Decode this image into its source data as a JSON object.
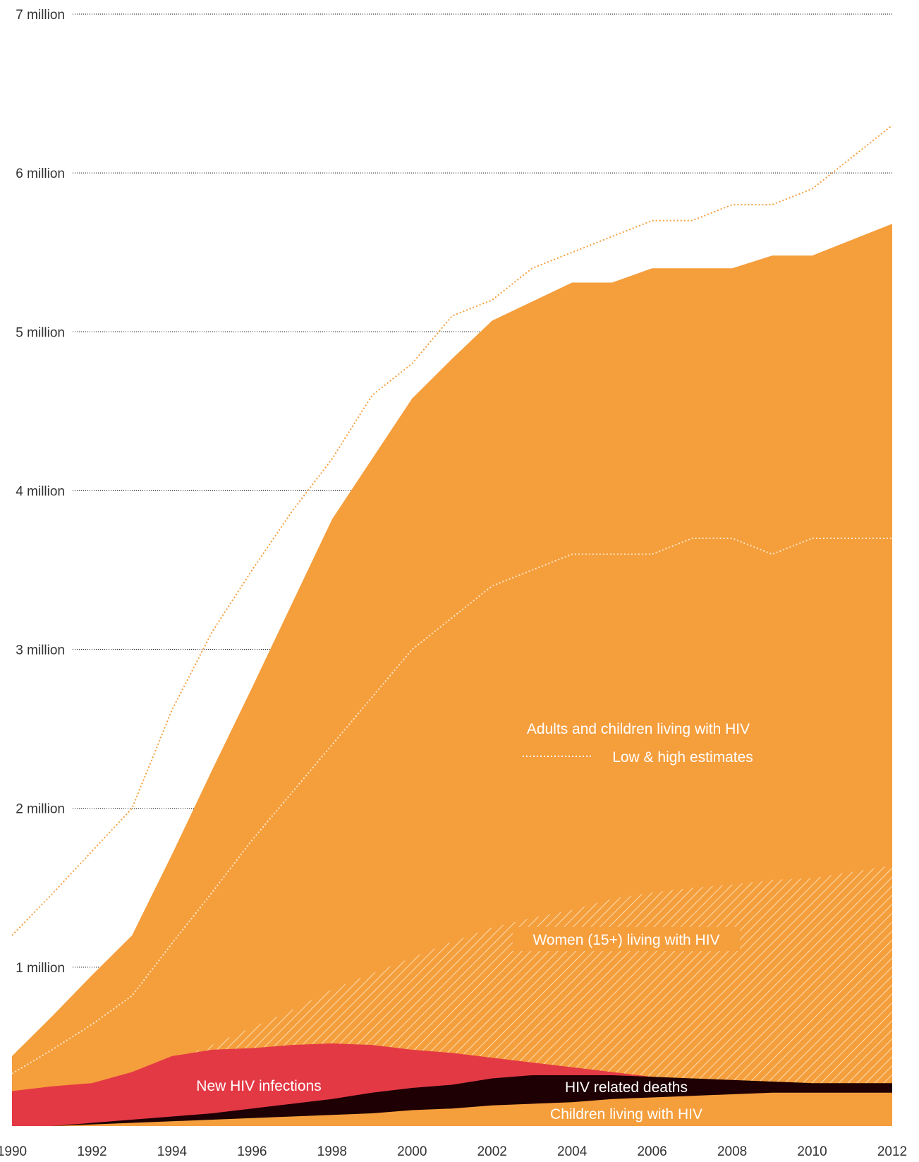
{
  "colors": {
    "adults_fill": "#F59E3C",
    "women_hatch": "#FBD9A8",
    "new_infections": "#E33945",
    "deaths": "#1E0004",
    "children": "#F59E3C",
    "high_estimate_line": "#F59E3C",
    "low_estimate_line": "#FFE8C8",
    "gridline": "#333333"
  },
  "chart_data": {
    "type": "area",
    "x": [
      1990,
      1991,
      1992,
      1993,
      1994,
      1995,
      1996,
      1997,
      1998,
      1999,
      2000,
      2001,
      2002,
      2003,
      2004,
      2005,
      2006,
      2007,
      2008,
      2009,
      2010,
      2011,
      2012
    ],
    "x_ticks": [
      "1990",
      "1992",
      "1994",
      "1996",
      "1998",
      "2000",
      "2002",
      "2004",
      "2006",
      "2008",
      "2010",
      "2012"
    ],
    "y_ticks": [
      {
        "value": 1000000,
        "label": "1 million"
      },
      {
        "value": 2000000,
        "label": "2 million"
      },
      {
        "value": 3000000,
        "label": "3 million"
      },
      {
        "value": 4000000,
        "label": "4 million"
      },
      {
        "value": 5000000,
        "label": "5 million"
      },
      {
        "value": 6000000,
        "label": "6 million"
      },
      {
        "value": 7000000,
        "label": "7 million"
      }
    ],
    "ylim": [
      0,
      7000000
    ],
    "grid": true,
    "series": [
      {
        "name": "Adults and children living with HIV",
        "values": [
          440000,
          690000,
          950000,
          1200000,
          1710000,
          2240000,
          2760000,
          3290000,
          3820000,
          4200000,
          4580000,
          4830000,
          5070000,
          5190000,
          5310000,
          5310000,
          5400000,
          5400000,
          5400000,
          5480000,
          5480000,
          5580000,
          5680000
        ]
      },
      {
        "name": "Low & high estimates (high)",
        "values": [
          1200000,
          1460000,
          1730000,
          2000000,
          2620000,
          3110000,
          3500000,
          3870000,
          4200000,
          4600000,
          4800000,
          5100000,
          5200000,
          5400000,
          5500000,
          5600000,
          5700000,
          5700000,
          5800000,
          5800000,
          5900000,
          6100000,
          6300000
        ]
      },
      {
        "name": "Low & high estimates (low)",
        "values": [
          330000,
          480000,
          640000,
          820000,
          1150000,
          1470000,
          1800000,
          2100000,
          2400000,
          2700000,
          3000000,
          3200000,
          3400000,
          3500000,
          3600000,
          3600000,
          3600000,
          3700000,
          3700000,
          3600000,
          3700000,
          3700000,
          3700000
        ]
      },
      {
        "name": "Women (15+) living with HIV",
        "values": [
          100000,
          170000,
          230000,
          320000,
          410000,
          510000,
          620000,
          730000,
          860000,
          960000,
          1060000,
          1160000,
          1250000,
          1310000,
          1360000,
          1430000,
          1470000,
          1500000,
          1520000,
          1550000,
          1560000,
          1600000,
          1640000
        ]
      },
      {
        "name": "New HIV infections",
        "values": [
          220000,
          250000,
          270000,
          340000,
          440000,
          480000,
          490000,
          510000,
          520000,
          510000,
          480000,
          460000,
          430000,
          400000,
          370000,
          340000,
          310000,
          290000,
          270000,
          260000,
          250000,
          240000,
          230000
        ]
      },
      {
        "name": "HIV related deaths",
        "values": [
          0,
          0,
          10000,
          20000,
          30000,
          40000,
          60000,
          80000,
          100000,
          130000,
          140000,
          150000,
          170000,
          180000,
          170000,
          150000,
          130000,
          110000,
          90000,
          70000,
          60000,
          60000,
          60000
        ]
      },
      {
        "name": "Children living with HIV",
        "values": [
          0,
          0,
          10000,
          20000,
          30000,
          40000,
          50000,
          60000,
          70000,
          80000,
          100000,
          110000,
          130000,
          140000,
          150000,
          170000,
          180000,
          190000,
          200000,
          210000,
          210000,
          210000,
          210000
        ]
      }
    ],
    "labels": {
      "adults": "Adults and children living with HIV",
      "estimates": "Low & high estimates",
      "women": "Women (15+) living with HIV",
      "new_infections": "New HIV infections",
      "deaths": "HIV related deaths",
      "children": "Children living with HIV"
    }
  }
}
